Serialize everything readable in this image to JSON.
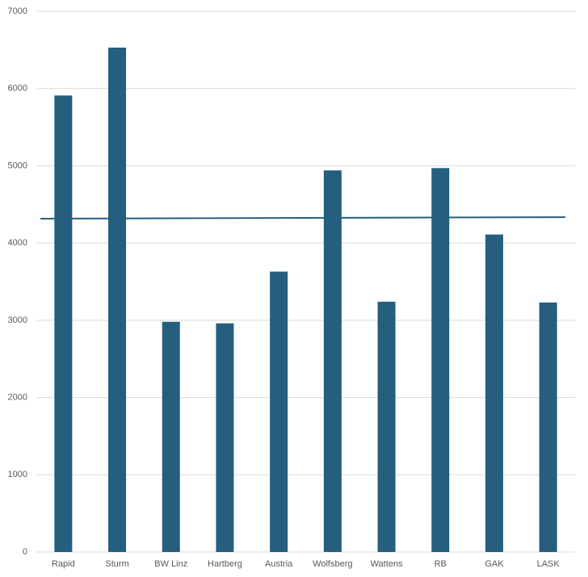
{
  "chart_data": {
    "type": "bar",
    "categories": [
      "Rapid",
      "Sturm",
      "BW Linz",
      "Hartberg",
      "Austria",
      "Wolfsberg",
      "Wattens",
      "RB",
      "GAK",
      "LASK"
    ],
    "values": [
      5910,
      6530,
      2980,
      2960,
      3630,
      4940,
      3240,
      4970,
      4110,
      3230
    ],
    "color": "#255e7e",
    "reference_line": {
      "values": [
        4315,
        4335
      ],
      "color": "#255e7e"
    },
    "ylim": [
      0,
      7000
    ],
    "yticks": [
      0,
      1000,
      2000,
      3000,
      4000,
      5000,
      6000,
      7000
    ],
    "grid": true
  }
}
